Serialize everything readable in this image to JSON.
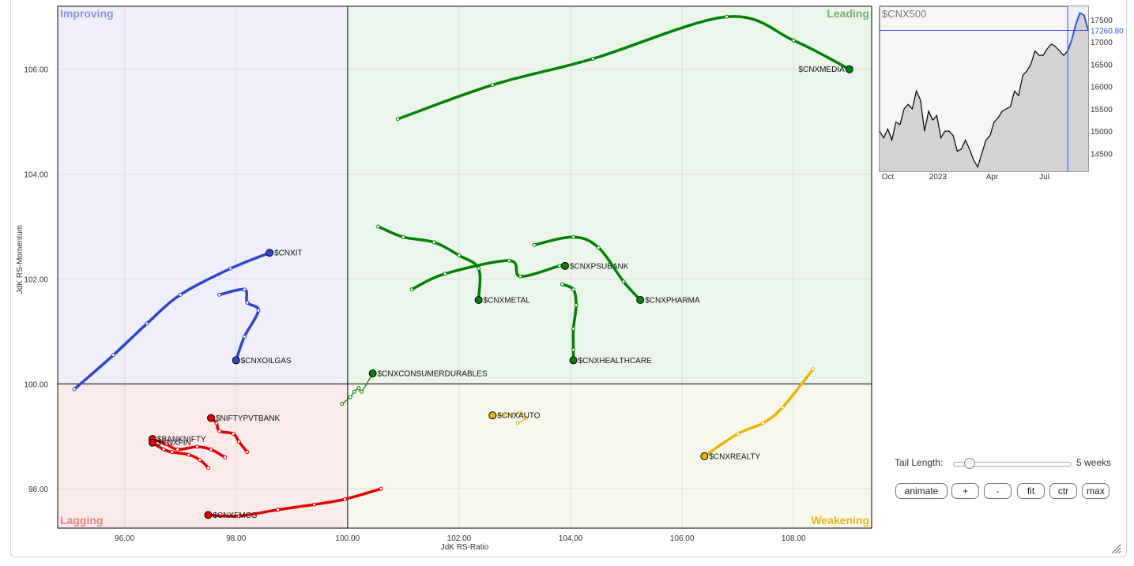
{
  "chart_data": {
    "type": "scatter",
    "xlabel": "JdK RS-Ratio",
    "ylabel": "JdK RS-Momentum",
    "xlim": [
      94.8,
      109.4
    ],
    "ylim": [
      97.25,
      107.2
    ],
    "x_ticks": [
      "96.00",
      "98.00",
      "100.00",
      "102.00",
      "104.00",
      "106.00",
      "108.00"
    ],
    "x_tick_values": [
      96,
      98,
      100,
      102,
      104,
      106,
      108
    ],
    "y_ticks": [
      "98.00",
      "100.00",
      "102.00",
      "104.00",
      "106.00"
    ],
    "y_tick_values": [
      98,
      100,
      102,
      104,
      106
    ],
    "grid": true,
    "quadrants": {
      "improving": "Improving",
      "leading": "Leading",
      "lagging": "Lagging",
      "weakening": "Weakening"
    },
    "quadrant_colors": {
      "improving_bg": "#eeeffa",
      "improving_text": "#8c93d6",
      "leading_bg": "#ecf5ec",
      "leading_text": "#74b274",
      "lagging_bg": "#fbeaea",
      "lagging_text": "#e5868a",
      "weakening_bg": "#f8f7ee",
      "weakening_text": "#e0b820"
    },
    "series": [
      {
        "name": "$CNXMEDIA",
        "color": "#008000",
        "points": [
          [
            100.9,
            105.05
          ],
          [
            102.6,
            105.7
          ],
          [
            104.4,
            106.2
          ],
          [
            106.8,
            107.0
          ],
          [
            108.0,
            106.55
          ],
          [
            109.0,
            106.0
          ]
        ]
      },
      {
        "name": "$CNXIT",
        "color": "#3344cc",
        "points": [
          [
            95.1,
            99.9
          ],
          [
            95.8,
            100.55
          ],
          [
            96.4,
            101.15
          ],
          [
            97.0,
            101.7
          ],
          [
            97.9,
            102.2
          ],
          [
            98.6,
            102.5
          ]
        ]
      },
      {
        "name": "$CNXOILGAS",
        "color": "#3344cc",
        "points": [
          [
            97.7,
            101.7
          ],
          [
            98.15,
            101.8
          ],
          [
            98.2,
            101.55
          ],
          [
            98.4,
            101.4
          ],
          [
            98.15,
            100.9
          ],
          [
            98.0,
            100.45
          ]
        ]
      },
      {
        "name": "$CNXMETAL",
        "color": "#008000",
        "points": [
          [
            100.55,
            103.0
          ],
          [
            101.0,
            102.8
          ],
          [
            101.55,
            102.7
          ],
          [
            102.0,
            102.45
          ],
          [
            102.35,
            102.2
          ],
          [
            102.35,
            101.6
          ]
        ]
      },
      {
        "name": "$CNXPSUBANK",
        "color": "#008000",
        "points": [
          [
            101.15,
            101.8
          ],
          [
            101.75,
            102.1
          ],
          [
            102.9,
            102.35
          ],
          [
            103.1,
            102.05
          ],
          [
            103.8,
            102.25
          ],
          [
            103.9,
            102.25
          ]
        ]
      },
      {
        "name": "$CNXPHARMA",
        "color": "#008000",
        "points": [
          [
            103.35,
            102.65
          ],
          [
            104.05,
            102.8
          ],
          [
            104.5,
            102.6
          ],
          [
            104.95,
            101.95
          ],
          [
            105.25,
            101.6
          ]
        ]
      },
      {
        "name": "$CNXHEALTHCARE",
        "color": "#008000",
        "points": [
          [
            103.85,
            101.9
          ],
          [
            104.05,
            101.8
          ],
          [
            104.1,
            101.5
          ],
          [
            104.05,
            101.05
          ],
          [
            104.05,
            100.65
          ],
          [
            104.05,
            100.45
          ]
        ]
      },
      {
        "name": "$CNXCONSUMERDURABLES",
        "color": "#008000",
        "points": [
          [
            99.9,
            99.62
          ],
          [
            100.05,
            99.75
          ],
          [
            100.12,
            99.85
          ],
          [
            100.2,
            99.92
          ],
          [
            100.25,
            99.85
          ],
          [
            100.45,
            100.2
          ]
        ]
      },
      {
        "name": "$CNXAUTO",
        "color": "#e6b800",
        "points": [
          [
            103.05,
            99.25
          ],
          [
            103.2,
            99.35
          ],
          [
            103.1,
            99.45
          ],
          [
            102.85,
            99.4
          ],
          [
            102.6,
            99.4
          ]
        ]
      },
      {
        "name": "$CNXREALTY",
        "color": "#e6b800",
        "points": [
          [
            108.35,
            100.28
          ],
          [
            107.8,
            99.55
          ],
          [
            107.45,
            99.25
          ],
          [
            107.0,
            99.05
          ],
          [
            106.4,
            98.62
          ]
        ]
      },
      {
        "name": "$NIFTYPVTBANK",
        "color": "#e00000",
        "points": [
          [
            98.2,
            98.7
          ],
          [
            98.05,
            98.9
          ],
          [
            97.95,
            99.05
          ],
          [
            97.7,
            99.1
          ],
          [
            97.65,
            99.25
          ],
          [
            97.55,
            99.35
          ]
        ]
      },
      {
        "name": "$BANKNIFTY",
        "color": "#e00000",
        "points": [
          [
            97.8,
            98.6
          ],
          [
            97.55,
            98.75
          ],
          [
            97.3,
            98.8
          ],
          [
            96.95,
            98.75
          ],
          [
            96.75,
            98.85
          ],
          [
            96.5,
            98.95
          ]
        ]
      },
      {
        "name": "$CNXFIN",
        "color": "#e00000",
        "points": [
          [
            97.5,
            98.4
          ],
          [
            97.35,
            98.55
          ],
          [
            97.15,
            98.65
          ],
          [
            96.85,
            98.7
          ],
          [
            96.7,
            98.75
          ],
          [
            96.5,
            98.88
          ]
        ]
      },
      {
        "name": "$CNXFMCG",
        "color": "#e00000",
        "points": [
          [
            100.6,
            98.0
          ],
          [
            99.95,
            97.8
          ],
          [
            99.4,
            97.7
          ],
          [
            98.75,
            97.6
          ],
          [
            98.05,
            97.48
          ],
          [
            97.5,
            97.5
          ]
        ]
      }
    ],
    "tail_length": "5 weeks"
  },
  "benchmark": {
    "name": "$CNX500",
    "last_value": "17260.80",
    "y_ticks": [
      "17500",
      "17000",
      "16500",
      "16000",
      "15500",
      "15000",
      "14500"
    ],
    "y_tick_values": [
      17500,
      17000,
      16500,
      16000,
      15500,
      15000,
      14500
    ],
    "ylim": [
      14100,
      17800
    ],
    "x_ticks": [
      "Oct",
      "2023",
      "Apr",
      "Jul"
    ],
    "x_tick_positions": [
      0.04,
      0.28,
      0.54,
      0.79
    ],
    "values": [
      15000,
      14850,
      15050,
      14800,
      15200,
      15150,
      15500,
      15600,
      15500,
      15900,
      15700,
      15000,
      15450,
      15250,
      15350,
      14850,
      15000,
      15000,
      14900,
      14550,
      14600,
      14800,
      14600,
      14350,
      14200,
      14500,
      14800,
      14900,
      15200,
      15300,
      15450,
      15500,
      15550,
      15900,
      15800,
      16250,
      16350,
      16500,
      16800,
      16700,
      16700,
      16850,
      16950,
      16900,
      16800,
      16700,
      16800,
      17050,
      17400,
      17650,
      17600,
      17261
    ],
    "highlight_start_fraction": 0.9,
    "line_color": "#000000",
    "highlight_color": "#3355dd"
  },
  "controls": {
    "tail_length_label": "Tail Length:",
    "tail_value": "5 weeks",
    "tail_fraction": 0.1,
    "animate": "animate",
    "plus": "+",
    "minus": "-",
    "fit": "fit",
    "ctr": "ctr",
    "max": "max"
  }
}
